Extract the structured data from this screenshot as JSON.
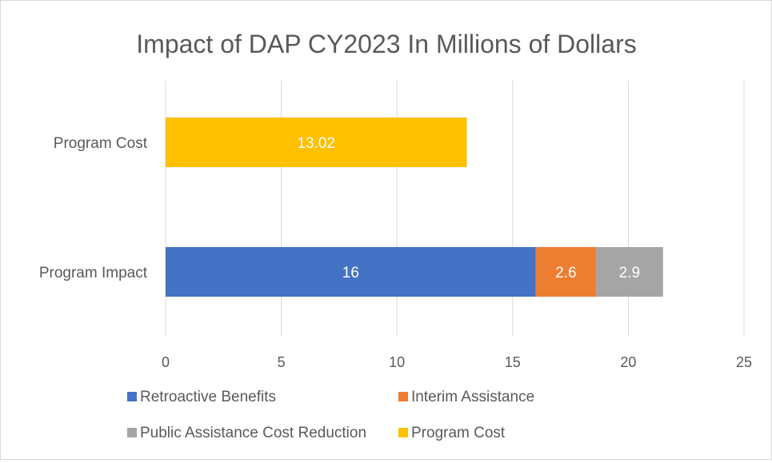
{
  "chart_data": {
    "type": "bar",
    "orientation": "horizontal",
    "stacked": true,
    "title": "Impact of DAP CY2023 In Millions of Dollars",
    "categories": [
      "Program Impact",
      "Program Cost"
    ],
    "series": [
      {
        "name": "Retroactive Benefits",
        "values": [
          16,
          null
        ],
        "labels": [
          "16",
          ""
        ],
        "color": "#4472C4"
      },
      {
        "name": "Interim Assistance",
        "values": [
          2.6,
          null
        ],
        "labels": [
          "2.6",
          ""
        ],
        "color": "#ED7D31"
      },
      {
        "name": "Public Assistance Cost Reduction",
        "values": [
          2.9,
          null
        ],
        "labels": [
          "2.9",
          ""
        ],
        "color": "#A5A5A5"
      },
      {
        "name": "Program Cost",
        "values": [
          null,
          13.02
        ],
        "labels": [
          "",
          "13.02"
        ],
        "color": "#FFC000"
      }
    ],
    "xlim": [
      0,
      25
    ],
    "x_ticks": [
      0,
      5,
      10,
      15,
      20,
      25
    ],
    "x_tick_labels": [
      "0",
      "5",
      "10",
      "15",
      "20",
      "25"
    ],
    "grid": "vertical",
    "legend_position": "bottom",
    "xlabel": "",
    "ylabel": ""
  }
}
